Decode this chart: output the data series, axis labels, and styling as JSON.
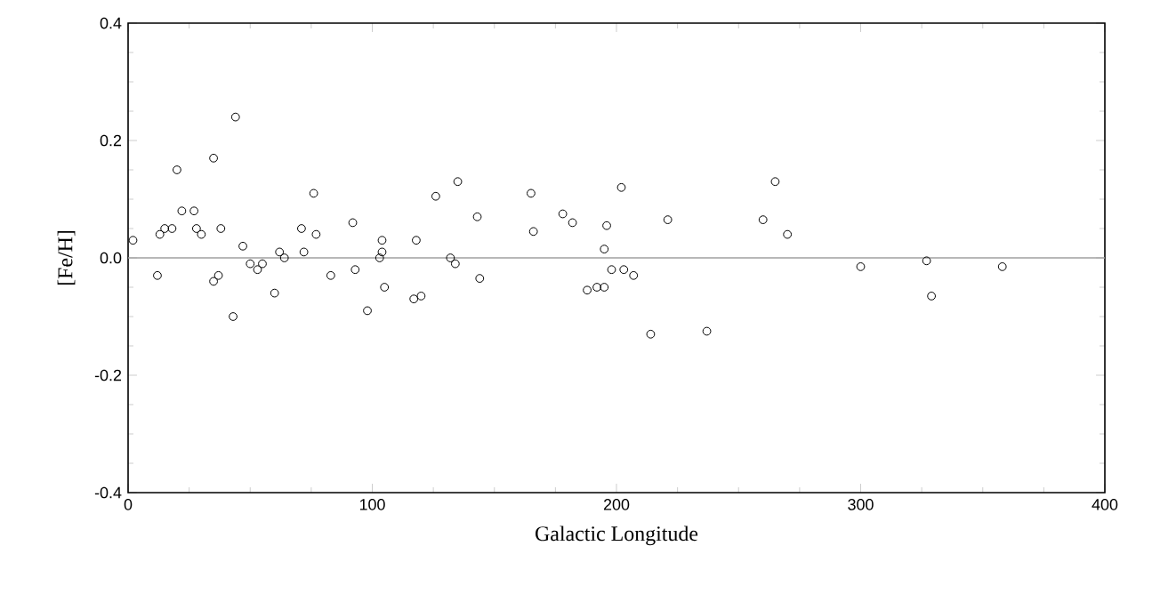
{
  "chart_data": {
    "type": "scatter",
    "xlabel": "Galactic Longitude",
    "ylabel": "[Fe/H]",
    "x": [
      2,
      12,
      13,
      15,
      18,
      20,
      22,
      27,
      28,
      30,
      35,
      35,
      37,
      38,
      43,
      44,
      47,
      50,
      53,
      55,
      60,
      62,
      64,
      71,
      72,
      76,
      77,
      83,
      92,
      93,
      98,
      103,
      104,
      104,
      105,
      117,
      118,
      120,
      126,
      132,
      134,
      135,
      143,
      144,
      165,
      166,
      178,
      182,
      188,
      192,
      195,
      195,
      196,
      198,
      202,
      203,
      207,
      214,
      221,
      237,
      260,
      265,
      270,
      300,
      327,
      329,
      358
    ],
    "values": [
      0.03,
      -0.03,
      0.04,
      0.05,
      0.05,
      0.15,
      0.08,
      0.08,
      0.05,
      0.04,
      0.17,
      -0.04,
      -0.03,
      0.05,
      -0.1,
      0.24,
      0.02,
      -0.01,
      -0.02,
      -0.01,
      -0.06,
      0.01,
      0.0,
      0.05,
      0.01,
      0.11,
      0.04,
      -0.03,
      0.06,
      -0.02,
      -0.09,
      0.0,
      0.03,
      0.01,
      -0.05,
      -0.07,
      0.03,
      -0.065,
      0.105,
      0.0,
      -0.01,
      0.13,
      0.07,
      -0.035,
      0.11,
      0.045,
      0.075,
      0.06,
      -0.055,
      -0.05,
      -0.05,
      0.015,
      0.055,
      -0.02,
      0.12,
      -0.02,
      -0.03,
      -0.13,
      0.065,
      -0.125,
      0.065,
      0.13,
      0.04,
      -0.015,
      -0.005,
      -0.065,
      -0.015
    ],
    "color": "#000000",
    "marker": "circle",
    "xlim": [
      0,
      400
    ],
    "xticks": [
      0,
      100,
      200,
      300,
      400
    ],
    "ylim": [
      -0.4,
      0.4
    ],
    "yticks": [
      -0.4,
      -0.2,
      {
        "value": 0,
        "label": "0.0"
      },
      0.2,
      0.4
    ],
    "ref_lines": [
      {
        "axis": "y",
        "value": 0,
        "color": "#a0a0a0"
      }
    ],
    "grid": false
  }
}
